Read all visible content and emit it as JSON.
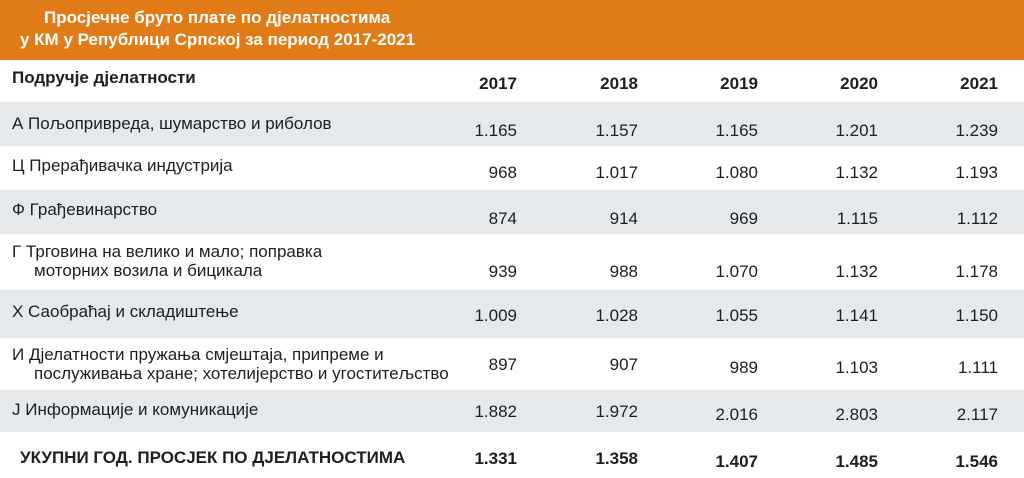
{
  "title": {
    "line1": "Просјечне бруто плате по дјелатностима",
    "line2": "у КМ у Републици Српској  за период 2017-2021"
  },
  "header": {
    "label": "Подручје дјелатности",
    "years": [
      "2017",
      "2018",
      "2019",
      "2020",
      "2021"
    ]
  },
  "rows": [
    {
      "label": "А  Пољопривреда, шумарство и риболов",
      "values": [
        "1.165",
        "1.157",
        "1.165",
        "1.201",
        "1.239"
      ]
    },
    {
      "label": "Ц Прерађивачка индустрија",
      "values": [
        "968",
        "1.017",
        "1.080",
        "1.132",
        "1.193"
      ]
    },
    {
      "label": "Ф  Грађевинарство",
      "values": [
        "874",
        "914",
        "969",
        "1.115",
        "1.112"
      ]
    },
    {
      "label_line1": "Г Трговина на велико и мало; поправка",
      "label_line2": "моторних возила и бицикала",
      "values": [
        "939",
        "988",
        "1.070",
        "1.132",
        "1.178"
      ]
    },
    {
      "label": "Х Саобраћај и складиштење",
      "values": [
        "1.009",
        "1.028",
        "1.055",
        "1.141",
        "1.150"
      ]
    },
    {
      "label_line1": "И   Дјелатности пружања смјештаја, припреме и",
      "label_line2": "послуживања хране; хотелијерство и угоститељство",
      "values": [
        "897",
        "907",
        "989",
        "1.103",
        "1.111"
      ]
    },
    {
      "label": "Ј  Информације и комуникације",
      "values": [
        "1.882",
        "1.972",
        "2.016",
        "2.803",
        "2.117"
      ]
    }
  ],
  "total": {
    "label": "УКУПНИ ГОД. ПРОСЈЕК ПО ДЈЕЛАТНОСТИМА",
    "values": [
      "1.331",
      "1.358",
      "1.407",
      "1.485",
      "1.546"
    ]
  }
}
